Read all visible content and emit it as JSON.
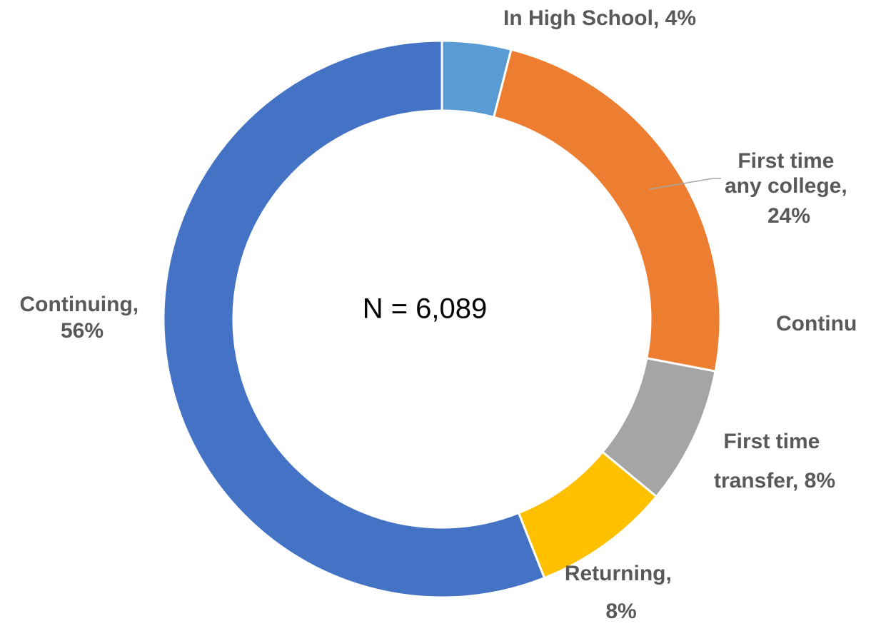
{
  "chart_data": {
    "type": "donut",
    "categories": [
      "In High School",
      "First time any college",
      "First time transfer",
      "Returning",
      "Continuing"
    ],
    "values": [
      4,
      24,
      8,
      8,
      56
    ],
    "data_labels": [
      "In High School, 4%",
      "First time any college, 24%",
      "First time transfer, 8%",
      "Returning, 8%",
      "Continuing, 56%"
    ],
    "colors": [
      "#5b9bd5",
      "#ed7d31",
      "#a5a5a5",
      "#ffc000",
      "#4472c4"
    ],
    "center_text": "N = 6,089",
    "annotation": "Continu"
  }
}
